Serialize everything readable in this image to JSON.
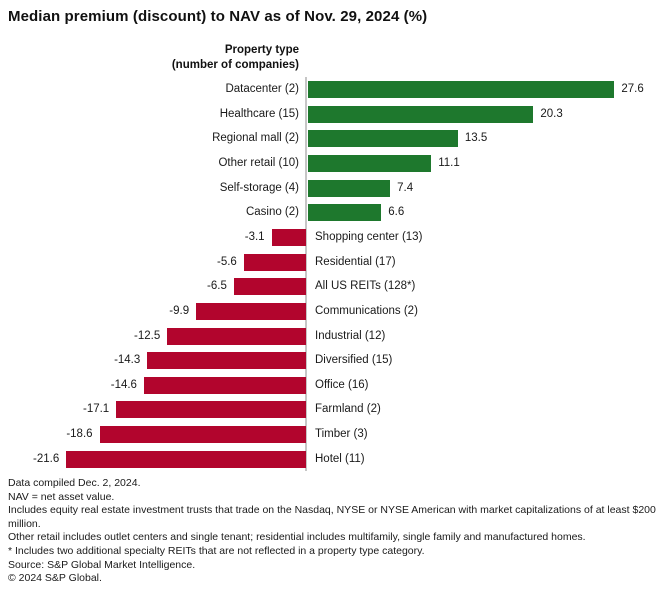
{
  "title": "Median premium (discount) to NAV as of Nov. 29, 2024 (%)",
  "chart_data": {
    "type": "bar",
    "orientation": "horizontal",
    "axis_header_line1": "Property type",
    "axis_header_line2": "(number of companies)",
    "categories": [
      "Datacenter (2)",
      "Healthcare (15)",
      "Regional mall (2)",
      "Other retail (10)",
      "Self-storage (4)",
      "Casino (2)",
      "Shopping center (13)",
      "Residential (17)",
      "All US REITs (128*)",
      "Communications (2)",
      "Industrial (12)",
      "Diversified (15)",
      "Office (16)",
      "Farmland (2)",
      "Timber (3)",
      "Hotel (11)"
    ],
    "values": [
      27.6,
      20.3,
      13.5,
      11.1,
      7.4,
      6.6,
      -3.1,
      -5.6,
      -6.5,
      -9.9,
      -12.5,
      -14.3,
      -14.6,
      -17.1,
      -18.6,
      -21.6
    ],
    "positive_color": "#1e782d",
    "negative_color": "#b2052d",
    "axis_line_color": "#c6c6c6",
    "xlim": [
      -27,
      31.5
    ],
    "value_label_format": "one_decimal",
    "legend": "none",
    "grid": false
  },
  "footer": {
    "lines": [
      "Data compiled Dec. 2, 2024.",
      "NAV = net asset value.",
      "Includes equity real estate investment trusts that trade on the Nasdaq, NYSE or NYSE American with market capitalizations of at least $200 million.",
      "Other retail includes outlet centers and single tenant; residential includes multifamily, single family and manufactured homes.",
      "* Includes two additional specialty REITs that are not reflected in a property type category.",
      "Source: S&P Global Market Intelligence.",
      "© 2024 S&P Global."
    ]
  }
}
